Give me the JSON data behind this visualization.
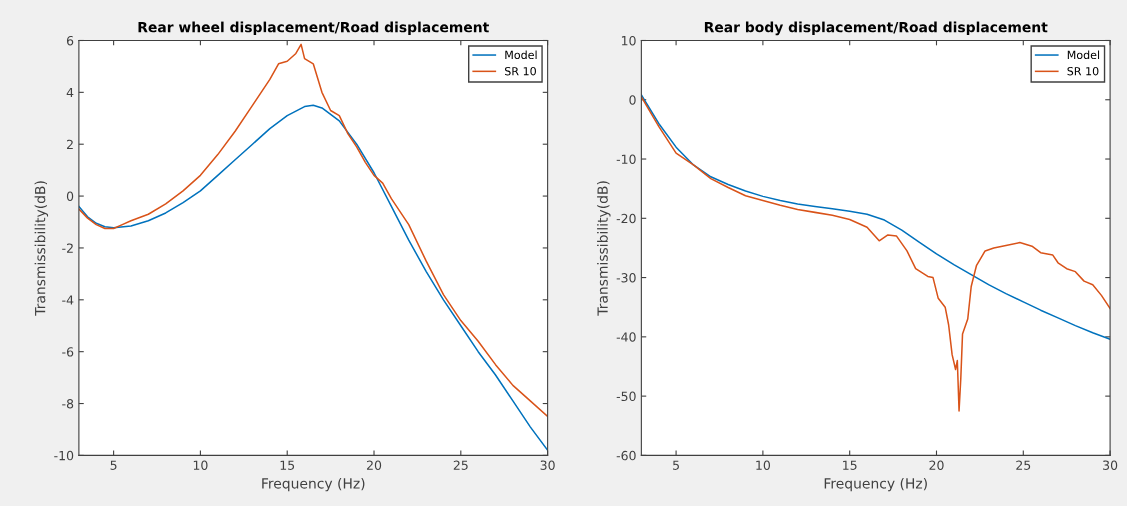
{
  "chart_data": [
    {
      "type": "line",
      "title": "Rear wheel displacement/Road displacement",
      "xlabel": "Frequency (Hz)",
      "ylabel": "Transmissibility(dB)",
      "xlim": [
        3,
        30
      ],
      "xticks": [
        5,
        10,
        15,
        20,
        25,
        30
      ],
      "ylim": [
        -10,
        6
      ],
      "yticks": [
        -10,
        -8,
        -6,
        -4,
        -2,
        0,
        2,
        4,
        6
      ],
      "grid": false,
      "legend": "top right",
      "series": [
        {
          "name": "Model",
          "color": "#0072bd",
          "x": [
            3,
            3.5,
            4,
            4.5,
            5,
            6,
            7,
            8,
            9,
            10,
            11,
            12,
            13,
            14,
            15,
            16,
            16.5,
            17,
            18,
            19,
            20,
            21,
            22,
            23,
            24,
            25,
            26,
            27,
            28,
            29,
            30
          ],
          "values": [
            -0.4,
            -0.8,
            -1.05,
            -1.18,
            -1.22,
            -1.15,
            -0.95,
            -0.65,
            -0.25,
            0.2,
            0.8,
            1.4,
            2.0,
            2.6,
            3.1,
            3.45,
            3.5,
            3.4,
            2.9,
            2.0,
            0.9,
            -0.4,
            -1.7,
            -2.9,
            -4.0,
            -5.0,
            -6.0,
            -6.9,
            -7.9,
            -8.9,
            -9.8
          ]
        },
        {
          "name": "SR 10",
          "color": "#d95319",
          "x": [
            3,
            3.5,
            4,
            4.5,
            5,
            5.5,
            6,
            7,
            8,
            9,
            10,
            11,
            12,
            13,
            14,
            14.5,
            15,
            15.5,
            15.8,
            16,
            16.5,
            17,
            17.5,
            18,
            18.5,
            19,
            19.5,
            20,
            20.5,
            21,
            22,
            23,
            24,
            25,
            26,
            27,
            28,
            29,
            30
          ],
          "values": [
            -0.5,
            -0.85,
            -1.1,
            -1.25,
            -1.25,
            -1.1,
            -0.95,
            -0.7,
            -0.3,
            0.2,
            0.8,
            1.6,
            2.5,
            3.5,
            4.5,
            5.1,
            5.2,
            5.5,
            5.85,
            5.3,
            5.1,
            4.0,
            3.3,
            3.1,
            2.4,
            1.9,
            1.3,
            0.8,
            0.5,
            -0.1,
            -1.1,
            -2.5,
            -3.8,
            -4.8,
            -5.6,
            -6.5,
            -7.3,
            -7.9,
            -8.5
          ]
        }
      ]
    },
    {
      "type": "line",
      "title": "Rear body displacement/Road displacement",
      "xlabel": "Frequency (Hz)",
      "ylabel": "Transmissibility(dB)",
      "xlim": [
        3,
        30
      ],
      "xticks": [
        5,
        10,
        15,
        20,
        25,
        30
      ],
      "ylim": [
        -60,
        10
      ],
      "yticks": [
        -60,
        -50,
        -40,
        -30,
        -20,
        -10,
        0,
        10
      ],
      "grid": false,
      "legend": "top right",
      "series": [
        {
          "name": "Model",
          "color": "#0072bd",
          "x": [
            3,
            4,
            5,
            6,
            7,
            8,
            9,
            10,
            11,
            12,
            13,
            14,
            15,
            16,
            17,
            18,
            19,
            20,
            21,
            22,
            23,
            24,
            25,
            26,
            27,
            28,
            29,
            30
          ],
          "values": [
            0.8,
            -4,
            -8,
            -11,
            -13,
            -14.3,
            -15.4,
            -16.3,
            -17,
            -17.6,
            -18,
            -18.4,
            -18.8,
            -19.3,
            -20.3,
            -22,
            -24,
            -26,
            -27.8,
            -29.5,
            -31.2,
            -32.7,
            -34.1,
            -35.5,
            -36.8,
            -38.1,
            -39.3,
            -40.4
          ]
        },
        {
          "name": "SR 10",
          "color": "#d95319",
          "x": [
            3,
            4,
            5,
            6,
            7,
            8,
            9,
            10,
            11,
            12,
            13,
            14,
            15,
            16,
            16.7,
            17.2,
            17.7,
            18.3,
            18.8,
            19.5,
            19.8,
            20.1,
            20.5,
            20.7,
            20.9,
            21.1,
            21.2,
            21.3,
            21.4,
            21.5,
            21.8,
            22,
            22.3,
            22.8,
            23.3,
            24,
            24.8,
            25.5,
            26,
            26.7,
            27,
            27.5,
            28,
            28.5,
            29,
            29.5,
            30
          ],
          "values": [
            0.5,
            -4.5,
            -9,
            -11,
            -13.3,
            -14.8,
            -16.2,
            -17,
            -17.8,
            -18.5,
            -19,
            -19.5,
            -20.2,
            -21.5,
            -23.8,
            -22.8,
            -23,
            -25.5,
            -28.5,
            -29.8,
            -30,
            -33.5,
            -35,
            -38,
            -43,
            -45.5,
            -44,
            -52.5,
            -47,
            -39.5,
            -37,
            -31.5,
            -28,
            -25.5,
            -25,
            -24.6,
            -24.1,
            -24.7,
            -25.8,
            -26.2,
            -27.5,
            -28.5,
            -29,
            -30.6,
            -31.2,
            -33,
            -35.2
          ]
        }
      ]
    }
  ]
}
